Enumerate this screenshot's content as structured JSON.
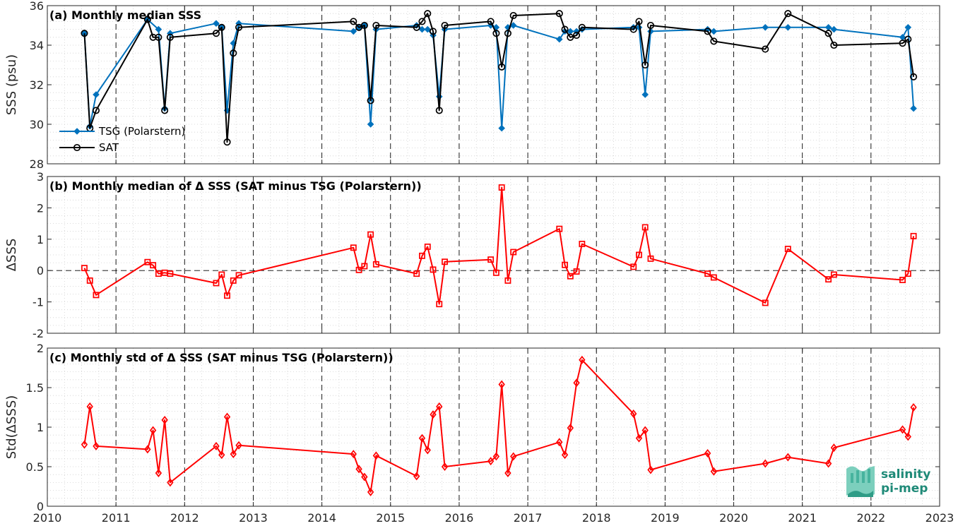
{
  "chart_data": [
    {
      "type": "line",
      "title": "(a) Monthly median SSS",
      "ylabel": "SSS (psu)",
      "ylim": [
        28,
        36
      ],
      "yticks": [
        "28",
        "30",
        "32",
        "34",
        "36"
      ],
      "xlim": [
        2010,
        2023
      ],
      "grid": true,
      "legend_position": "bottom-left",
      "series": [
        {
          "name": "TSG (Polarstern)",
          "color": "#0072BD",
          "marker": "diamond",
          "x": [
            2010.54,
            2010.62,
            2010.71,
            2011.46,
            2011.62,
            2011.71,
            2011.79,
            2012.46,
            2012.54,
            2012.62,
            2012.71,
            2012.79,
            2014.46,
            2014.54,
            2014.62,
            2014.71,
            2014.79,
            2015.38,
            2015.46,
            2015.54,
            2015.62,
            2015.71,
            2015.79,
            2016.46,
            2016.54,
            2016.62,
            2016.71,
            2016.79,
            2017.46,
            2017.54,
            2017.62,
            2017.71,
            2017.79,
            2018.54,
            2018.62,
            2018.71,
            2018.79,
            2019.62,
            2019.71,
            2020.46,
            2020.79,
            2021.38,
            2021.46,
            2022.46,
            2022.54,
            2022.62
          ],
          "y": [
            34.6,
            29.9,
            31.5,
            35.3,
            34.8,
            30.8,
            34.6,
            35.1,
            34.9,
            30.7,
            34.1,
            35.1,
            34.7,
            34.9,
            35.0,
            30.0,
            34.8,
            35.0,
            34.8,
            34.8,
            34.5,
            31.4,
            34.8,
            35.0,
            34.9,
            29.8,
            34.9,
            35.0,
            34.3,
            34.7,
            34.7,
            34.7,
            34.8,
            34.9,
            34.9,
            31.5,
            34.7,
            34.8,
            34.7,
            34.9,
            34.9,
            34.9,
            34.8,
            34.4,
            34.9,
            30.8
          ]
        },
        {
          "name": "SAT",
          "color": "#000000",
          "marker": "circle",
          "x": [
            2010.54,
            2010.62,
            2010.71,
            2011.46,
            2011.54,
            2011.62,
            2011.71,
            2011.79,
            2012.46,
            2012.54,
            2012.62,
            2012.71,
            2012.79,
            2014.46,
            2014.54,
            2014.62,
            2014.71,
            2014.79,
            2015.38,
            2015.46,
            2015.54,
            2015.62,
            2015.71,
            2015.79,
            2016.46,
            2016.54,
            2016.62,
            2016.71,
            2016.79,
            2017.46,
            2017.54,
            2017.62,
            2017.71,
            2017.79,
            2018.54,
            2018.62,
            2018.71,
            2018.79,
            2019.62,
            2019.71,
            2020.46,
            2020.79,
            2021.38,
            2021.46,
            2022.46,
            2022.54,
            2022.62
          ],
          "y": [
            34.6,
            29.8,
            30.7,
            35.3,
            34.4,
            34.4,
            30.7,
            34.4,
            34.6,
            34.9,
            29.1,
            33.6,
            34.9,
            35.2,
            34.9,
            35.0,
            31.2,
            35.0,
            34.9,
            35.2,
            35.6,
            34.7,
            30.7,
            35.0,
            35.2,
            34.6,
            32.9,
            34.6,
            35.5,
            35.6,
            34.8,
            34.4,
            34.5,
            34.9,
            34.8,
            35.2,
            33.0,
            35.0,
            34.7,
            34.2,
            33.8,
            35.6,
            34.6,
            34.0,
            34.1,
            34.3,
            32.4
          ]
        }
      ]
    },
    {
      "type": "line",
      "title": "(b) Monthly median of Δ SSS (SAT minus TSG (Polarstern))",
      "ylabel": "ΔSSS",
      "ylim": [
        -2,
        3
      ],
      "yticks": [
        "-2",
        "-1",
        "0",
        "1",
        "2",
        "3"
      ],
      "xlim": [
        2010,
        2023
      ],
      "grid": true,
      "zero_line": true,
      "series": [
        {
          "color": "#FF0000",
          "marker": "square",
          "x": [
            2010.54,
            2010.62,
            2010.71,
            2011.46,
            2011.54,
            2011.62,
            2011.71,
            2011.79,
            2012.46,
            2012.54,
            2012.62,
            2012.71,
            2012.79,
            2014.46,
            2014.54,
            2014.62,
            2014.71,
            2014.79,
            2015.38,
            2015.46,
            2015.54,
            2015.62,
            2015.71,
            2015.79,
            2016.46,
            2016.54,
            2016.62,
            2016.71,
            2016.79,
            2017.46,
            2017.54,
            2017.62,
            2017.71,
            2017.79,
            2018.54,
            2018.62,
            2018.71,
            2018.79,
            2019.62,
            2019.71,
            2020.46,
            2020.79,
            2021.38,
            2021.46,
            2022.46,
            2022.54,
            2022.62
          ],
          "y": [
            0.08,
            -0.32,
            -0.78,
            0.27,
            0.17,
            -0.1,
            -0.07,
            -0.1,
            -0.4,
            -0.13,
            -0.8,
            -0.32,
            -0.15,
            0.73,
            0.02,
            0.14,
            1.15,
            0.2,
            -0.1,
            0.47,
            0.76,
            0.03,
            -1.07,
            0.28,
            0.35,
            -0.07,
            2.65,
            -0.32,
            0.59,
            1.33,
            0.18,
            -0.18,
            -0.03,
            0.85,
            0.12,
            0.5,
            1.38,
            0.38,
            -0.1,
            -0.22,
            -1.03,
            0.69,
            -0.28,
            -0.13,
            -0.3,
            -0.1,
            1.1
          ]
        }
      ]
    },
    {
      "type": "line",
      "title": "(c) Monthly std of Δ SSS (SAT minus TSG (Polarstern))",
      "ylabel": "Std(ΔSSS)",
      "ylim": [
        0,
        2
      ],
      "yticks": [
        "0",
        "0.5",
        "1",
        "1.5",
        "2"
      ],
      "xlim": [
        2010,
        2023
      ],
      "xticks": [
        "2010",
        "2011",
        "2012",
        "2013",
        "2014",
        "2015",
        "2016",
        "2017",
        "2018",
        "2019",
        "2020",
        "2021",
        "2022",
        "2023"
      ],
      "grid": true,
      "series": [
        {
          "color": "#FF0000",
          "marker": "diamond",
          "x": [
            2010.54,
            2010.62,
            2010.71,
            2011.46,
            2011.54,
            2011.62,
            2011.71,
            2011.79,
            2012.46,
            2012.54,
            2012.62,
            2012.71,
            2012.79,
            2014.46,
            2014.54,
            2014.62,
            2014.71,
            2014.79,
            2015.38,
            2015.46,
            2015.54,
            2015.62,
            2015.71,
            2015.79,
            2016.46,
            2016.54,
            2016.62,
            2016.71,
            2016.79,
            2017.46,
            2017.54,
            2017.62,
            2017.71,
            2017.79,
            2018.54,
            2018.62,
            2018.71,
            2018.79,
            2019.62,
            2019.71,
            2020.46,
            2020.79,
            2021.38,
            2021.46,
            2022.46,
            2022.54,
            2022.62
          ],
          "y": [
            0.78,
            1.26,
            0.76,
            0.72,
            0.96,
            0.42,
            1.09,
            0.3,
            0.76,
            0.65,
            1.13,
            0.66,
            0.77,
            0.66,
            0.47,
            0.37,
            0.18,
            0.64,
            0.38,
            0.86,
            0.71,
            1.16,
            1.26,
            0.5,
            0.57,
            0.63,
            1.54,
            0.42,
            0.63,
            0.81,
            0.65,
            0.99,
            1.56,
            1.85,
            1.17,
            0.86,
            0.96,
            0.46,
            0.67,
            0.44,
            0.54,
            0.62,
            0.54,
            0.74,
            0.97,
            0.88,
            1.25
          ]
        }
      ]
    }
  ],
  "logo": {
    "line1": "salinity",
    "line2": "pi-mep"
  }
}
